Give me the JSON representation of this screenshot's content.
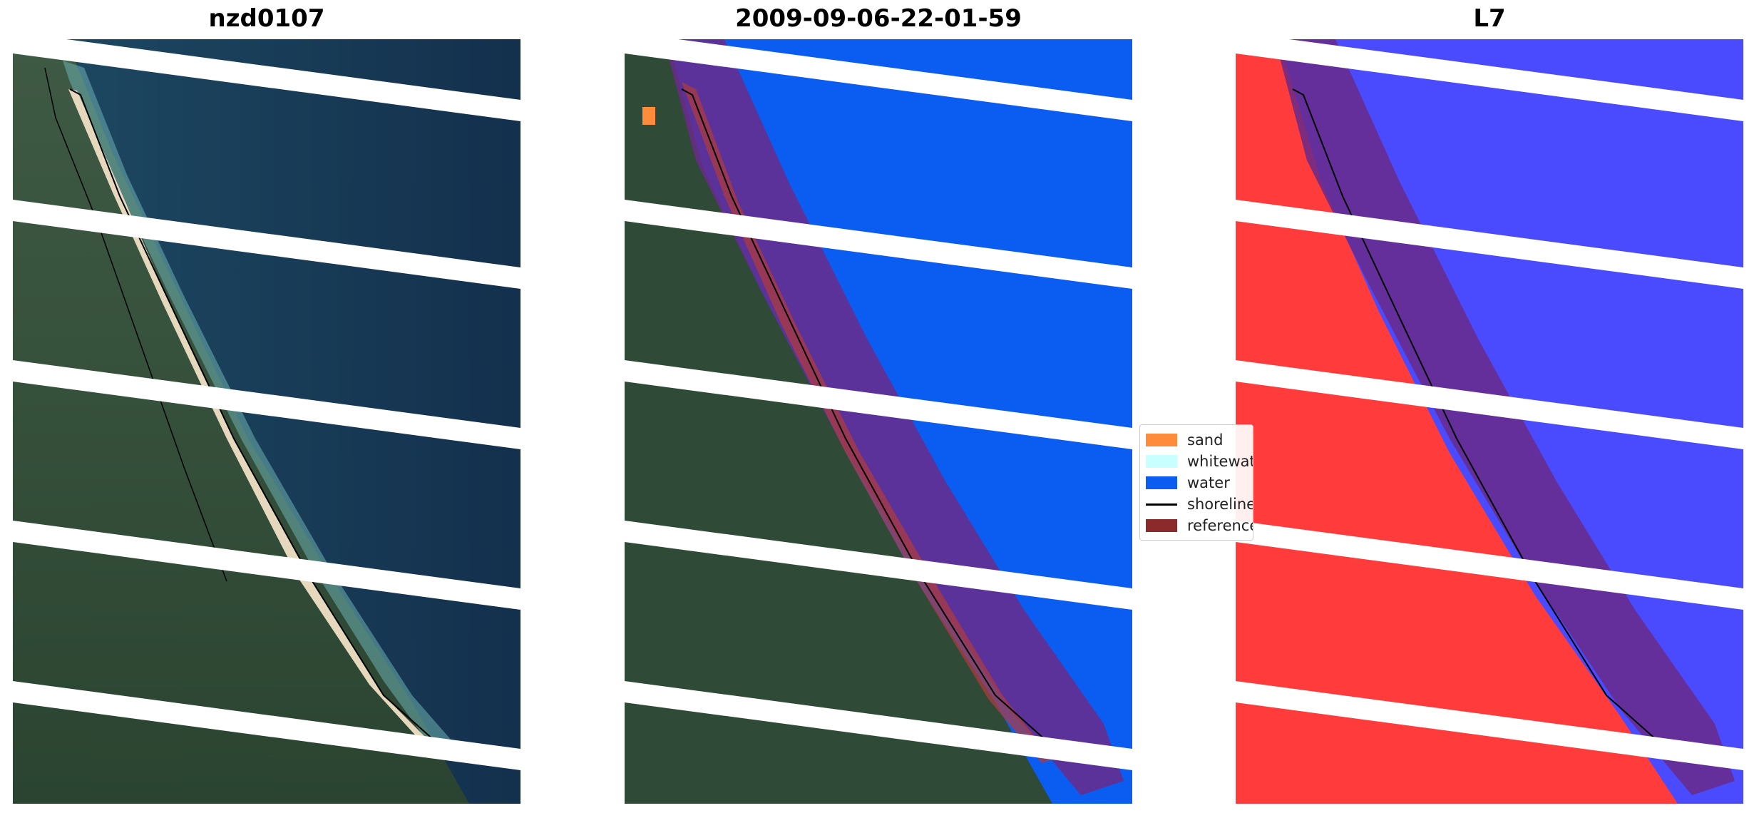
{
  "panels": [
    {
      "title": "nzd0107"
    },
    {
      "title": "2009-09-06-22-01-59"
    },
    {
      "title": "L7"
    }
  ],
  "legend": {
    "items": [
      {
        "label": "sand",
        "color": "#ff8c3a",
        "kind": "patch"
      },
      {
        "label": "whitewater",
        "color": "#c8ffff",
        "kind": "patch"
      },
      {
        "label": "water",
        "color": "#0b5cf0",
        "kind": "patch"
      },
      {
        "label": "shoreline",
        "color": "#000000",
        "kind": "line"
      },
      {
        "label": "reference shoreline",
        "color": "#8b2a2a",
        "kind": "patch"
      }
    ]
  },
  "colors": {
    "ocean": "#15304f",
    "land": "#2f4a36",
    "sand": "#e8dcc2",
    "water_class": "#0b5cf0",
    "buffer": "#6a2a8a",
    "land_index": "#ff3b3b",
    "water_index": "#4a4aff"
  }
}
